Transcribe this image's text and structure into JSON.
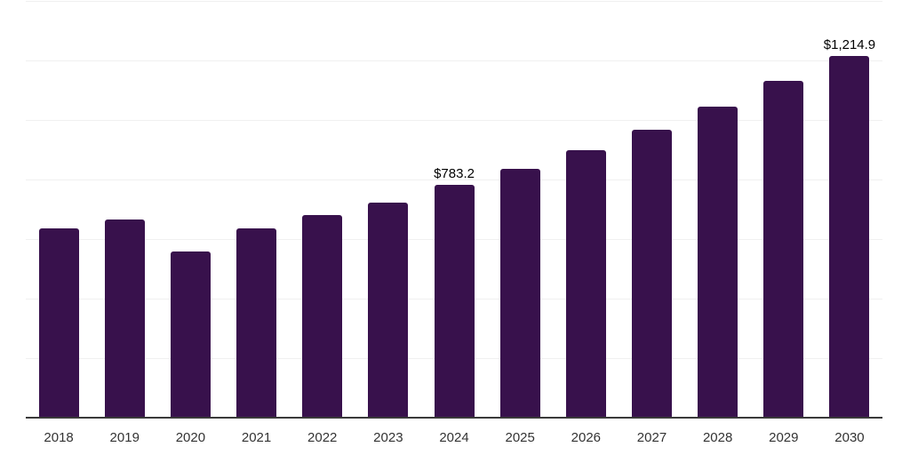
{
  "chart_data": {
    "type": "bar",
    "title": "",
    "xlabel": "",
    "ylabel": "",
    "categories": [
      "2018",
      "2019",
      "2020",
      "2021",
      "2022",
      "2023",
      "2024",
      "2025",
      "2026",
      "2027",
      "2028",
      "2029",
      "2030"
    ],
    "values": [
      637.0,
      666.9,
      559.3,
      637.0,
      681.9,
      723.8,
      783.2,
      834.4,
      897.2,
      966.0,
      1043.8,
      1130.5,
      1214.9
    ],
    "data_labels": [
      "",
      "",
      "",
      "",
      "",
      "",
      "$783.2",
      "",
      "",
      "",
      "",
      "",
      "$1,214.9"
    ],
    "ylim": [
      0,
      1400
    ],
    "grid_step": 200,
    "grid": "horizontal",
    "legend": "none",
    "y_tick_labels": "hidden",
    "colors": {
      "bar": "#38114c",
      "grid": "#f0f0f0",
      "axis_line": "#3a3a3a",
      "data_label": "#000000",
      "tick_label": "#333333",
      "background": "#ffffff"
    }
  }
}
